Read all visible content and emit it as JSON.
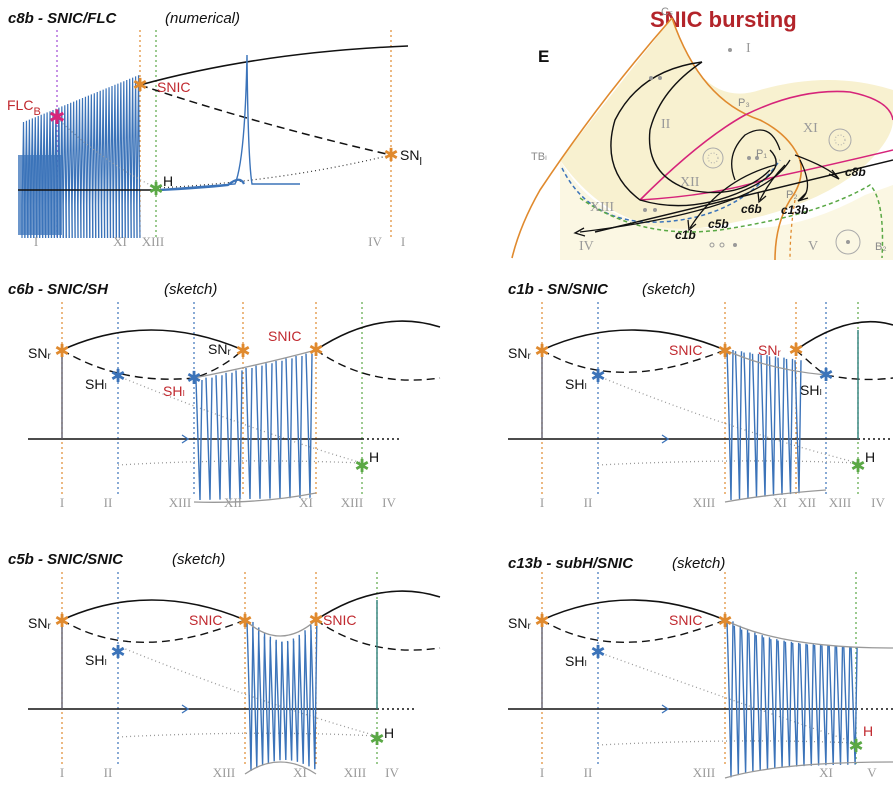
{
  "banner": "SNIC bursting",
  "map": {
    "letter": "E",
    "cs": "Cₛ",
    "p3": "P₃",
    "p1": "P₁",
    "p2": "P₂",
    "tb": "TBₗ",
    "b2": "B₂",
    "regions": [
      "I",
      "II",
      "XI",
      "XII",
      "XIII",
      "IV",
      "V"
    ],
    "trajectories": [
      "c8b",
      "c13b",
      "c6b",
      "c5b",
      "c1b"
    ]
  },
  "panels": [
    {
      "title": "c8b - SNIC/FLC",
      "subtitle": "(numerical)",
      "labels": [
        "FLC",
        "B",
        "SNIC",
        "SN",
        "l",
        "H"
      ],
      "ticks": [
        "I",
        "XI",
        "XIII",
        "IV",
        "I"
      ]
    },
    {
      "title": "c6b - SNIC/SH",
      "subtitle": "(sketch)",
      "labels": [
        "SNᵣ",
        "SHₗ",
        "SHₗ",
        "SNᵣ",
        "SNIC",
        "H"
      ],
      "ticks": [
        "I",
        "II",
        "XIII",
        "XII",
        "XI",
        "XIII",
        "IV"
      ]
    },
    {
      "title": "c1b - SN/SNIC",
      "subtitle": "(sketch)",
      "labels": [
        "SNᵣ",
        "SHₗ",
        "SNIC",
        "SNᵣ",
        "SHₗ",
        "H"
      ],
      "ticks": [
        "I",
        "II",
        "XIII",
        "XI",
        "XII",
        "XIII",
        "IV"
      ]
    },
    {
      "title": "c5b - SNIC/SNIC",
      "subtitle": "(sketch)",
      "labels": [
        "SNᵣ",
        "SHₗ",
        "SNIC",
        "SNIC",
        "H"
      ],
      "ticks": [
        "I",
        "II",
        "XIII",
        "XI",
        "XIII",
        "IV"
      ]
    },
    {
      "title": "c13b - subH/SNIC",
      "subtitle": "(sketch)",
      "labels": [
        "SNᵣ",
        "SHₗ",
        "SNIC",
        "H"
      ],
      "ticks": [
        "I",
        "II",
        "XIII",
        "XI",
        "V"
      ]
    }
  ],
  "colors": {
    "orange": "#e08a2e",
    "blue": "#3b73b9",
    "green": "#5aa845",
    "magenta": "#d6247a",
    "red": "#c0282e",
    "bg_region": "#f8f1d0"
  }
}
